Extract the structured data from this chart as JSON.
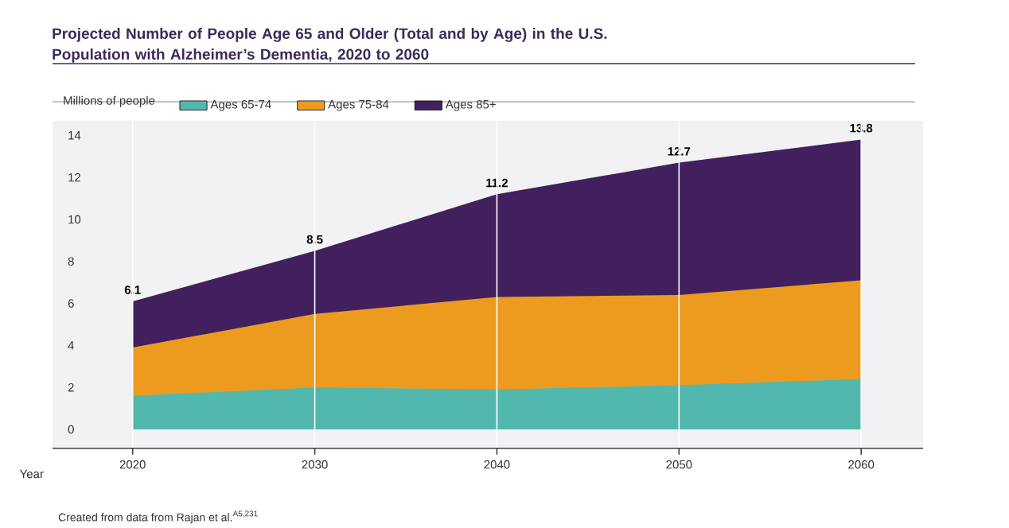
{
  "chart_data": {
    "type": "area",
    "stacked": true,
    "title": "Projected Number of People Age 65 and Older (Total and by Age) in the U.S. Population with Alzheimer’s Dementia, 2020 to 2060",
    "ylabel": "Millions of people",
    "xlabel": "Year",
    "x": [
      2020,
      2030,
      2040,
      2050,
      2060
    ],
    "series": [
      {
        "name": "Ages 65-74",
        "color": "#52b8ae",
        "values": [
          1.6,
          2.0,
          1.9,
          2.1,
          2.4
        ]
      },
      {
        "name": "Ages 75-84",
        "color": "#ec9b1f",
        "values": [
          2.3,
          3.5,
          4.4,
          4.3,
          4.7
        ]
      },
      {
        "name": "Ages 85+",
        "color": "#42205e",
        "values": [
          2.2,
          3.0,
          4.9,
          6.3,
          6.7
        ]
      }
    ],
    "totals": [
      "6.1",
      "8.5",
      "11.2",
      "12.7",
      "13.8"
    ],
    "xlim": [
      2015.6,
      2063.4
    ],
    "ylim": [
      -0.9,
      14.7
    ],
    "xticks": [
      2020,
      2030,
      2040,
      2050,
      2060
    ],
    "yticks": [
      0,
      2,
      4,
      6,
      8,
      10,
      12,
      14
    ],
    "grid": "x",
    "legend": "top",
    "annotations": [
      "Created from data from Rajan et al.$^{A5,231}$"
    ]
  }
}
